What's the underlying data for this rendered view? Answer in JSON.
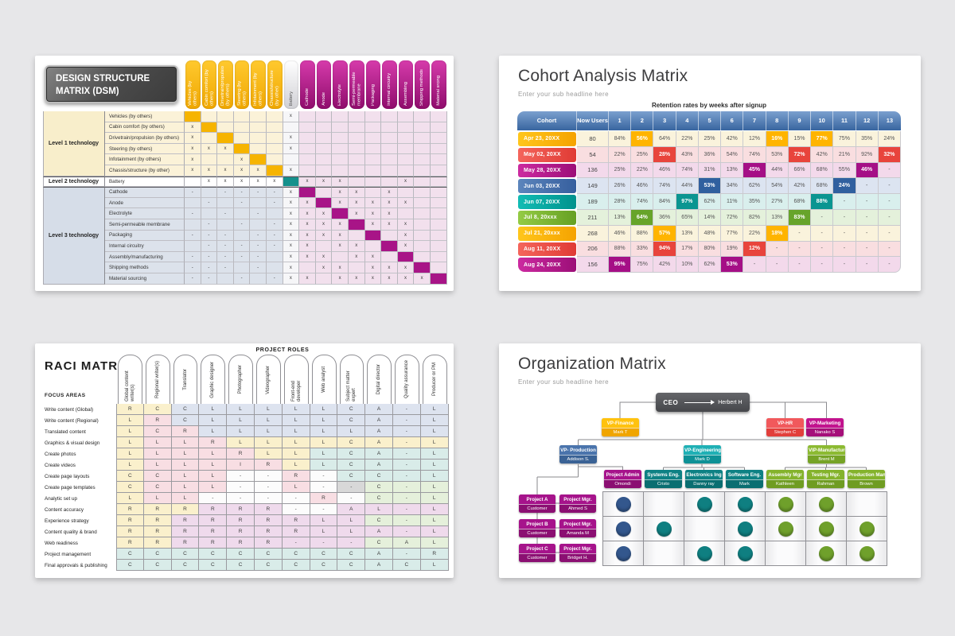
{
  "dsm": {
    "title": "DESIGN STRUCTURE MATRIX (DSM)",
    "groups": [
      {
        "label": "Level 1 technology",
        "span": 6,
        "theme": "cream"
      },
      {
        "label": "Level 2 technology",
        "span": 1,
        "theme": "white"
      },
      {
        "label": "Level 3 technology",
        "span": 9,
        "theme": "bluegray"
      }
    ],
    "columns": [
      {
        "label": "Vehicles (by others)",
        "type": "yellow"
      },
      {
        "label": "Cabin comfort (by others)",
        "type": "yellow"
      },
      {
        "label": "Drivetrain/propulsion (by others)",
        "type": "yellow"
      },
      {
        "label": "Steering (by others)",
        "type": "yellow"
      },
      {
        "label": "Infotainment (by others)",
        "type": "yellow"
      },
      {
        "label": "Chassis/structure (by other)",
        "type": "yellow"
      },
      {
        "label": "Battery",
        "type": "neutral"
      },
      {
        "label": "Cathode",
        "type": "magenta"
      },
      {
        "label": "Anode",
        "type": "magenta"
      },
      {
        "label": "Electrolyte",
        "type": "magenta"
      },
      {
        "label": "Semi-permeable membrane",
        "type": "magenta"
      },
      {
        "label": "Packaging",
        "type": "magenta"
      },
      {
        "label": "Internal circuitry",
        "type": "magenta"
      },
      {
        "label": "Assembling",
        "type": "magenta"
      },
      {
        "label": "Shipping methods",
        "type": "magenta"
      },
      {
        "label": "Material srcing",
        "type": "magenta"
      }
    ],
    "rows": [
      {
        "label": "Vehicles (by others)",
        "marks": "D.....x........."
      },
      {
        "label": "Cabin comfort (by others)",
        "marks": "xD.............."
      },
      {
        "label": "Drivetrain/propulsion (by others)",
        "marks": "x.D...x........."
      },
      {
        "label": "Steering (by others)",
        "marks": "xxxD..x........."
      },
      {
        "label": "Infotainment (by others)",
        "marks": "x..xD..........."
      },
      {
        "label": "Chassis/structure (by other)",
        "marks": "xxxxxDx........."
      },
      {
        "label": "Battery",
        "marks": ".xxxxxDxxx...x.."
      },
      {
        "label": "Cathode",
        "marks": "-.----xD.xx.x..."
      },
      {
        "label": "Anode",
        "marks": ".-.-.-xxDxxxxx.."
      },
      {
        "label": "Electrolyte",
        "marks": "-.-.-.xxxDxxx..."
      },
      {
        "label": "Semi-permeable membrane",
        "marks": ".-.-.-xxxxDxxx.."
      },
      {
        "label": "Packaging",
        "marks": "---.--xxxx.D.x.."
      },
      {
        "label": "Internal circuitry",
        "marks": ".-----xx.xx.Dx.."
      },
      {
        "label": "Assembly/manufacturing",
        "marks": "-----.xxx.xx.D.."
      },
      {
        "label": "Shipping methods",
        "marks": "---.-.x.xx.xxxD."
      },
      {
        "label": "Material sourcing",
        "marks": "--.-.-xx.xxxxxxD"
      }
    ],
    "colors": {
      "diag_yellow": "#F6B400",
      "diag_teal": "#14918C",
      "diag_magenta": "#A81487",
      "zone_cream": "#FBF2D8",
      "zone_bluegray": "#DCE2EB",
      "zone_pink": "#F2E0ED",
      "zone_battery": "#F6F6F8",
      "group_cream": "#F8EECB",
      "group_white": "#FFFFFF",
      "group_bluegray": "#D6DDE8"
    }
  },
  "cohort": {
    "title": "Cohort Analysis Matrix",
    "subtitle": "Enter your sub headline here",
    "caption": "Retention rates by weeks after signup",
    "headers": [
      "Cohort",
      "Now Users",
      "1",
      "2",
      "3",
      "4",
      "5",
      "6",
      "7",
      "8",
      "9",
      "10",
      "11",
      "12",
      "13"
    ],
    "themes": {
      "yellow": {
        "grad1": "#FFC61C",
        "grad2": "#F5A300",
        "tint": "#FAF3DC",
        "hl": "#FFB400"
      },
      "red": {
        "grad1": "#F4655C",
        "grad2": "#E03B35",
        "tint": "#F9DEE0",
        "hl": "#E8443C"
      },
      "magenta": {
        "grad1": "#CC2AA0",
        "grad2": "#9C0E78",
        "tint": "#F3D9EB",
        "hl": "#A50F86"
      },
      "blue": {
        "grad1": "#5C85BC",
        "grad2": "#365F9E",
        "tint": "#DCE4F1",
        "hl": "#30609F"
      },
      "teal": {
        "grad1": "#12BCB4",
        "grad2": "#00928D",
        "tint": "#D9EFED",
        "hl": "#0A9591"
      },
      "green": {
        "grad1": "#94CB45",
        "grad2": "#66A023",
        "tint": "#E4F1DB",
        "hl": "#67A42A"
      }
    },
    "rows": [
      {
        "label": "Apr 23, 20XX",
        "users": "80",
        "theme": "yellow",
        "weeks": [
          "84%",
          "56%",
          "64%",
          "22%",
          "25%",
          "42%",
          "12%",
          "16%",
          "15%",
          "77%",
          "75%",
          "35%",
          "24%"
        ],
        "hl": [
          1,
          7,
          9
        ]
      },
      {
        "label": "May 02, 20XX",
        "users": "54",
        "theme": "red",
        "weeks": [
          "22%",
          "25%",
          "28%",
          "43%",
          "36%",
          "54%",
          "74%",
          "53%",
          "72%",
          "42%",
          "21%",
          "92%",
          "32%"
        ],
        "hl": [
          2,
          8,
          12
        ]
      },
      {
        "label": "May 28, 20XX",
        "users": "136",
        "theme": "magenta",
        "weeks": [
          "25%",
          "22%",
          "46%",
          "74%",
          "31%",
          "13%",
          "45%",
          "44%",
          "66%",
          "68%",
          "55%",
          "46%",
          "-"
        ],
        "hl": [
          6,
          11
        ]
      },
      {
        "label": "Jun 03, 20XX",
        "users": "149",
        "theme": "blue",
        "weeks": [
          "26%",
          "46%",
          "74%",
          "44%",
          "53%",
          "34%",
          "62%",
          "54%",
          "42%",
          "68%",
          "24%",
          "-",
          "-"
        ],
        "hl": [
          4,
          10
        ]
      },
      {
        "label": "Jun 07, 20XX",
        "users": "189",
        "theme": "teal",
        "weeks": [
          "28%",
          "74%",
          "84%",
          "97%",
          "62%",
          "11%",
          "35%",
          "27%",
          "68%",
          "88%",
          "-",
          "-",
          "-"
        ],
        "hl": [
          3,
          9
        ]
      },
      {
        "label": "Jul 8, 20xxx",
        "users": "211",
        "theme": "green",
        "weeks": [
          "13%",
          "64%",
          "36%",
          "65%",
          "14%",
          "72%",
          "82%",
          "13%",
          "83%",
          "-",
          "-",
          "-",
          "-"
        ],
        "hl": [
          1,
          8
        ]
      },
      {
        "label": "Jul 21, 20xxx",
        "users": "268",
        "theme": "yellow",
        "weeks": [
          "46%",
          "88%",
          "57%",
          "13%",
          "48%",
          "77%",
          "22%",
          "18%",
          "-",
          "-",
          "-",
          "-",
          "-"
        ],
        "hl": [
          2,
          7
        ]
      },
      {
        "label": "Aug 11, 20XX",
        "users": "206",
        "theme": "red",
        "weeks": [
          "88%",
          "33%",
          "94%",
          "17%",
          "80%",
          "19%",
          "12%",
          "-",
          "-",
          "-",
          "-",
          "-",
          "-"
        ],
        "hl": [
          2,
          6
        ]
      },
      {
        "label": "Aug 24, 20XX",
        "users": "156",
        "theme": "magenta",
        "weeks": [
          "95%",
          "75%",
          "42%",
          "10%",
          "62%",
          "53%",
          "-",
          "-",
          "-",
          "-",
          "-",
          "-",
          "-"
        ],
        "hl": [
          0,
          5
        ]
      }
    ]
  },
  "raci": {
    "title": "RACI MATRIX",
    "roles_label": "PROJECT ROLES",
    "focus_label": "FOCUS AREAS",
    "columns": [
      "Global content writer(s)",
      "Regional writer(s)",
      "Translator",
      "Graphic designer",
      "Photographer",
      "Videographer",
      "Front-end developer",
      "Web analyst",
      "Subject matter expert",
      "Digital director",
      "Quality assurance",
      "Producer or PM"
    ],
    "cell_colors": {
      "Y": "#FAF0CC",
      "P": "#F8DEE3",
      "B": "#DDE3EF",
      "T": "#D9ECE9",
      "G": "#E5F0DB",
      "M": "#EFDAEC",
      "W": "#FCFCFC",
      "X": "#D8D8D8"
    },
    "rows": [
      {
        "label": "Write content (Global)",
        "letters": "RCCLLLLLCA-L",
        "colors": "YYBBBBBBBBBB"
      },
      {
        "label": "Write content (Regional)",
        "letters": "LRCLLLLLCA-L",
        "colors": "YPBBBBBBBBBB"
      },
      {
        "label": "Translated content",
        "letters": "LCRLLLLLLA-L",
        "colors": "YPPBBBBBBBBB"
      },
      {
        "label": "Graphics & visual design",
        "letters": "LLLRLLLLCA-L",
        "colors": "YPPPYYYYYYYY"
      },
      {
        "label": "Create photos",
        "letters": "LLLLRLLLCA-L",
        "colors": "YPPPPYYTTTTT"
      },
      {
        "label": "Create videos",
        "letters": "LLLLIRLLCA-L",
        "colors": "YPPPPPYTTTTT"
      },
      {
        "label": "Create page layouts",
        "letters": "CCLL--R-CC-L",
        "colors": "YPPPWWPWTTTT"
      },
      {
        "label": "Create page templates",
        "letters": "CCLL--L--C-L",
        "colors": "YPPPWWPWXGGG"
      },
      {
        "label": "Analytic set up",
        "letters": "LLL----R-C-L",
        "colors": "YPPWWWWPWGGG"
      },
      {
        "label": "Content accuracy",
        "letters": "RRRRRR--AL-L",
        "colors": "YYYMMMWWMMMM"
      },
      {
        "label": "Experience strategy",
        "letters": "RRRRRRRLLC-L",
        "colors": "YYMMMMMMMGGG"
      },
      {
        "label": "Content quality & brand",
        "letters": "RRRRRRRLLA-L",
        "colors": "YYMMMMMMMMMM"
      },
      {
        "label": "Web readiness",
        "letters": "RRRRRR---CAL",
        "colors": "YYMMMMMMMGGG"
      },
      {
        "label": "Project management",
        "letters": "CCCCCCCCCA-R",
        "colors": "TTTTTTTTTTTT"
      },
      {
        "label": "Final approvals & publishing",
        "letters": "CCCCCCCCCACL",
        "colors": "TTTTTTTTTTTT"
      }
    ]
  },
  "org": {
    "title": "Organization Matrix",
    "subtitle": "Enter your sub headline here",
    "ceo": {
      "title": "CEO",
      "name": "Herbert H"
    },
    "vps": [
      {
        "title": "VP-Finance",
        "name": "Mark T",
        "c1": "#FFC20E",
        "c2": "#F0A500"
      },
      {
        "title": "VP-HR",
        "name": "Stephen C",
        "c1": "#F1595C",
        "c2": "#E23F3B"
      },
      {
        "title": "VP-Marketing",
        "name": "Nanako S",
        "c1": "#C2138E",
        "c2": "#A50F79"
      }
    ],
    "divisions": [
      {
        "title": "VP- Production",
        "name": "Addison S.",
        "c1": "#4A74AC",
        "c2": "#3A6295"
      },
      {
        "title": "VP-Engineering",
        "name": "Mark D",
        "c1": "#1FB0B5",
        "c2": "#0E9196"
      },
      {
        "title": "VIP-Manufacturing",
        "name": "Brent M",
        "c1": "#8CBA32",
        "c2": "#76A326"
      }
    ],
    "roles": [
      {
        "title": "Project Admin",
        "name": "Omondi",
        "c1": "#A6138B",
        "c2": "#8B0F72"
      },
      {
        "title": "Systems Eng.",
        "name": "Cristo",
        "c1": "#0E8184",
        "c2": "#0A6E71"
      },
      {
        "title": "Electronics Ing",
        "name": "Danny ray",
        "c1": "#0E8184",
        "c2": "#0A6E71"
      },
      {
        "title": "Software Eng.",
        "name": "Mark",
        "c1": "#0E8184",
        "c2": "#0A6E71"
      },
      {
        "title": "Assembly Mgr",
        "name": "Kathleen",
        "c1": "#84B32C",
        "c2": "#6F9C22"
      },
      {
        "title": "Testing Mgr.",
        "name": "Rahman",
        "c1": "#84B32C",
        "c2": "#6F9C22"
      },
      {
        "title": "Production Man",
        "name": "Brown",
        "c1": "#84B32C",
        "c2": "#6F9C22"
      }
    ],
    "project_color": {
      "c1": "#A6138B",
      "c2": "#8B0F72"
    },
    "dot_colors": [
      "#33578D",
      "#0F7F81",
      "#0F7F81",
      "#0F7F81",
      "#6FA02B",
      "#6FA02B",
      "#6FA02B"
    ],
    "projects": [
      {
        "name": "Project A",
        "sub": "Customer",
        "mgr_title": "Project Mgr.",
        "mgr_name": "Ahmed S",
        "dots": [
          1,
          0,
          1,
          1,
          1,
          1,
          0
        ]
      },
      {
        "name": "Project B",
        "sub": "Customer",
        "mgr_title": "Project Mgr.",
        "mgr_name": "Amanda M",
        "dots": [
          1,
          1,
          0,
          1,
          1,
          1,
          1
        ]
      },
      {
        "name": "Project C",
        "sub": "Customer",
        "mgr_title": "Project Mgr.",
        "mgr_name": "Bridget H.",
        "dots": [
          1,
          0,
          1,
          1,
          0,
          1,
          1
        ]
      }
    ]
  }
}
